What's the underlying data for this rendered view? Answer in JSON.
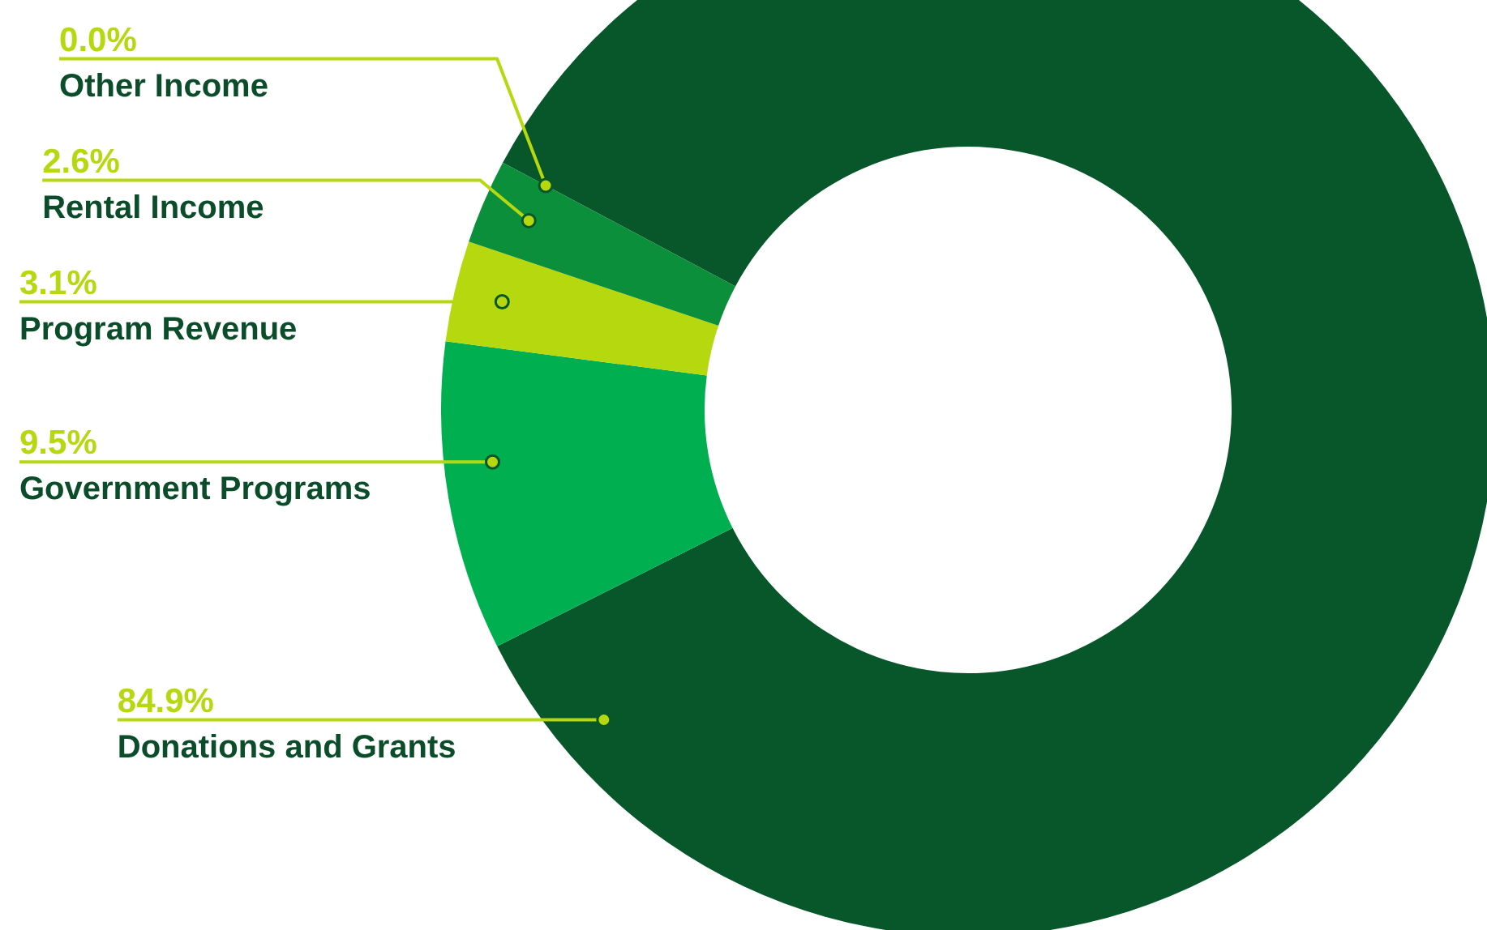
{
  "chart_data": {
    "type": "donut",
    "categories": [
      "Donations and Grants",
      "Government Programs",
      "Program Revenue",
      "Rental Income",
      "Other Income"
    ],
    "values": [
      84.9,
      9.5,
      3.1,
      2.6,
      0.0
    ],
    "value_labels": [
      "84.9%",
      "9.5%",
      "3.1%",
      "2.6%",
      "0.0%"
    ],
    "colors": [
      "#07572a",
      "#00b050",
      "#b5d80f",
      "#0b8f3a",
      "#0e7a35"
    ],
    "legend": false
  }
}
